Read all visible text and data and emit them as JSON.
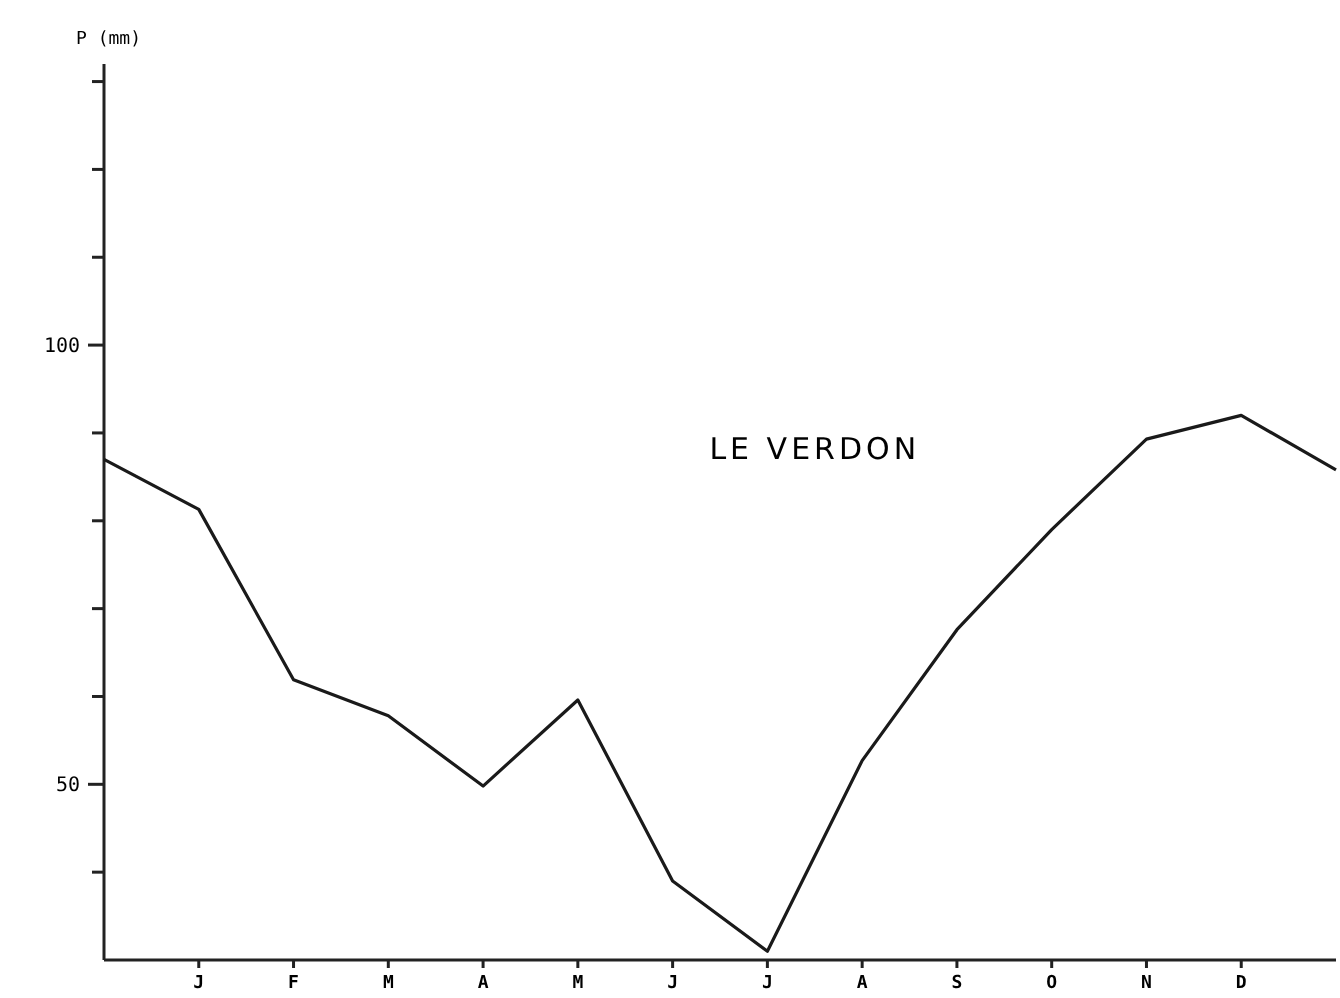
{
  "chart_data": {
    "type": "line",
    "title": "LE VERDON",
    "ylabel": "P (mm)",
    "categories": [
      null,
      "J",
      "F",
      "M",
      "A",
      "M",
      "J",
      "J",
      "A",
      "S",
      "O",
      "N",
      "D",
      null
    ],
    "series": [
      {
        "color": "#1a1a1a",
        "values": [
          87,
          81.3,
          61.9,
          57.8,
          49.8,
          59.6,
          39,
          31,
          52.7,
          67.6,
          79,
          89.3,
          92,
          85.8
        ]
      }
    ],
    "ylim": [
      30,
      132
    ],
    "yticks": [
      {
        "value": 40,
        "label": null
      },
      50,
      {
        "value": 60,
        "label": null
      },
      {
        "value": 70,
        "label": null
      },
      {
        "value": 80,
        "label": null
      },
      {
        "value": 90,
        "label": null
      },
      100,
      {
        "value": 110,
        "label": null
      },
      {
        "value": 120,
        "label": null
      },
      {
        "value": 130,
        "label": null
      }
    ],
    "grid": false,
    "marker": "none",
    "line_style": "solid"
  }
}
